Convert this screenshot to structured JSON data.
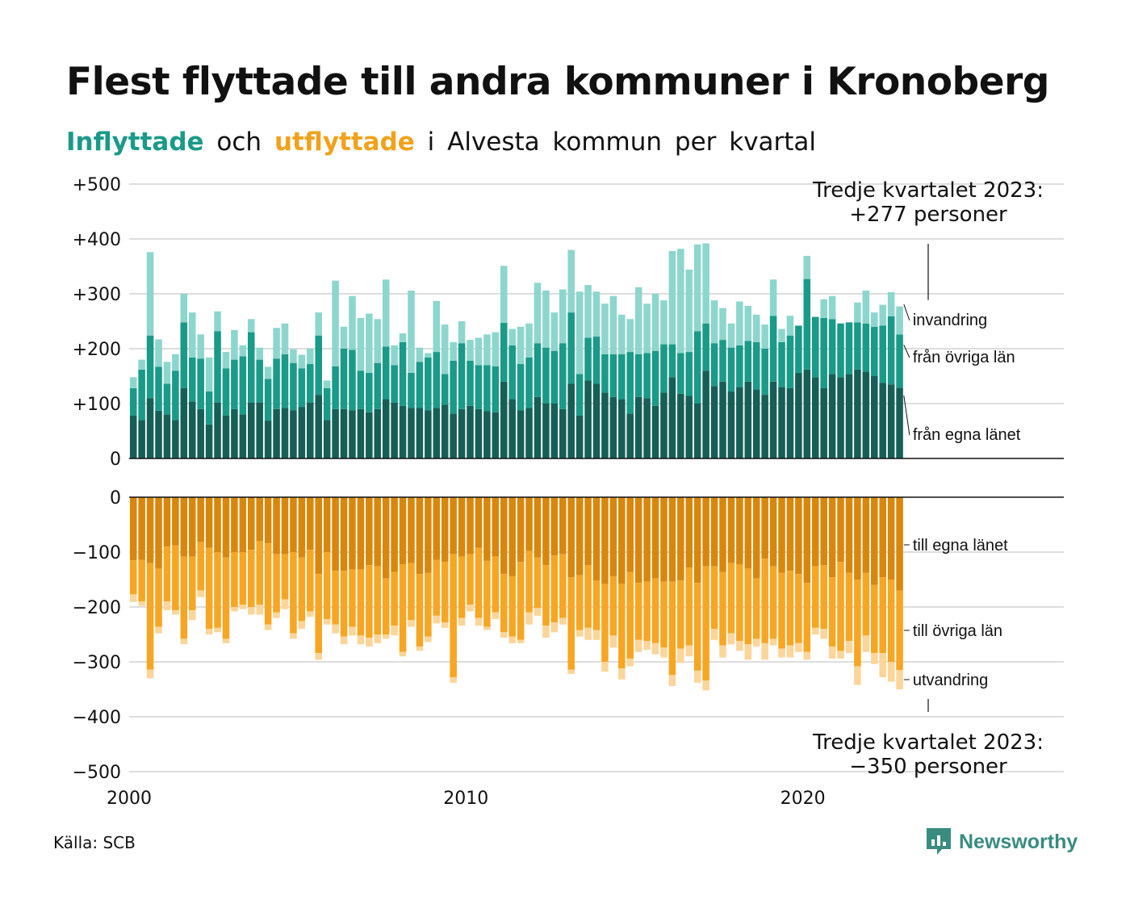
{
  "title": "Flest flyttade till andra kommuner i Kronoberg",
  "subtitle": {
    "in_word": "Inflyttade",
    "och": "och",
    "out_word": "utflyttade",
    "rest": "i Alvesta kommun per kvartal"
  },
  "source": "Källa: SCB",
  "brand": "Newsworthy",
  "colors": {
    "in_egna": "#165f57",
    "in_ovriga": "#1a9a88",
    "in_invandring": "#8dd6cd",
    "out_egna": "#d9870c",
    "out_ovriga": "#f7a623",
    "out_utvandring": "#fbd59a"
  },
  "chart_data": {
    "type": "bar",
    "stacked": true,
    "grid": true,
    "x_ticks": [
      "2000",
      "2010",
      "2020"
    ],
    "x_start_year": 2000,
    "x_end_year": 2027.75,
    "quarters_start": "2000 Q1",
    "upper_panel": {
      "ylim": [
        0,
        500
      ],
      "y_ticks": [
        "0",
        "+100",
        "+200",
        "+300",
        "+400",
        "+500"
      ],
      "annotation_lines": [
        "Tredje kvartalet 2023:",
        "+277 personer"
      ],
      "series": [
        {
          "name": "från egna länet",
          "values": [
            78,
            70,
            110,
            87,
            80,
            70,
            128,
            104,
            90,
            62,
            102,
            78,
            90,
            80,
            102,
            102,
            69,
            90,
            92,
            88,
            94,
            102,
            116,
            70,
            90,
            90,
            88,
            90,
            84,
            90,
            108,
            102,
            96,
            92,
            92,
            88,
            92,
            98,
            82,
            90,
            96,
            90,
            86,
            84,
            140,
            108,
            88,
            92,
            112,
            100,
            100,
            90,
            136,
            78,
            142,
            136,
            120,
            112,
            108,
            82,
            112,
            110,
            96,
            120,
            148,
            118,
            114,
            100,
            160,
            132,
            140,
            122,
            130,
            140,
            126,
            116,
            140,
            130,
            128,
            156,
            162,
            148,
            128,
            154,
            148,
            154,
            162,
            158,
            150,
            138,
            135,
            129
          ]
        },
        {
          "name": "från övriga län",
          "values": [
            50,
            92,
            114,
            80,
            56,
            90,
            120,
            80,
            92,
            60,
            130,
            86,
            90,
            106,
            128,
            78,
            76,
            92,
            98,
            86,
            70,
            70,
            108,
            58,
            78,
            110,
            110,
            70,
            72,
            84,
            96,
            68,
            116,
            64,
            84,
            96,
            102,
            56,
            96,
            120,
            82,
            80,
            84,
            84,
            107,
            98,
            84,
            92,
            98,
            102,
            96,
            120,
            130,
            76,
            78,
            86,
            70,
            78,
            82,
            112,
            78,
            82,
            100,
            88,
            60,
            74,
            80,
            132,
            86,
            78,
            76,
            80,
            76,
            74,
            86,
            84,
            120,
            82,
            96,
            86,
            165,
            110,
            128,
            100,
            98,
            94,
            86,
            88,
            90,
            104,
            124,
            97
          ]
        },
        {
          "name": "invandring",
          "values": [
            20,
            18,
            152,
            50,
            40,
            30,
            52,
            82,
            44,
            62,
            36,
            30,
            54,
            20,
            24,
            22,
            22,
            56,
            56,
            25,
            25,
            28,
            42,
            14,
            156,
            40,
            98,
            96,
            108,
            80,
            122,
            36,
            16,
            150,
            26,
            8,
            93,
            90,
            34,
            40,
            38,
            50,
            56,
            62,
            104,
            30,
            68,
            62,
            110,
            104,
            70,
            98,
            114,
            150,
            96,
            82,
            92,
            106,
            72,
            60,
            122,
            90,
            104,
            80,
            170,
            190,
            150,
            158,
            146,
            78,
            58,
            44,
            80,
            64,
            50,
            44,
            66,
            24,
            36,
            0,
            42,
            0,
            34,
            42,
            0,
            0,
            36,
            60,
            26,
            38,
            44,
            51
          ]
        }
      ]
    },
    "lower_panel": {
      "ylim": [
        -500,
        0
      ],
      "y_ticks": [
        "0",
        "−100",
        "−200",
        "−300",
        "−400",
        "−500"
      ],
      "annotation_lines": [
        "Tredje kvartalet 2023:",
        "−350 personer"
      ],
      "series": [
        {
          "name": "till egna länet",
          "values": [
            115,
            114,
            120,
            130,
            90,
            88,
            108,
            108,
            82,
            92,
            100,
            110,
            100,
            100,
            96,
            80,
            84,
            104,
            104,
            100,
            110,
            96,
            140,
            100,
            134,
            134,
            132,
            132,
            124,
            126,
            148,
            136,
            122,
            120,
            140,
            138,
            114,
            118,
            104,
            108,
            104,
            92,
            116,
            108,
            140,
            144,
            118,
            98,
            110,
            124,
            106,
            104,
            146,
            142,
            124,
            152,
            158,
            144,
            158,
            136,
            156,
            154,
            148,
            154,
            154,
            152,
            128,
            156,
            126,
            126,
            136,
            120,
            122,
            130,
            148,
            112,
            126,
            138,
            134,
            140,
            156,
            126,
            124,
            146,
            118,
            138,
            150,
            138,
            160,
            146,
            150,
            170
          ]
        },
        {
          "name": "till övriga län",
          "values": [
            62,
            76,
            194,
            106,
            100,
            118,
            150,
            98,
            88,
            148,
            138,
            148,
            100,
            96,
            104,
            116,
            148,
            106,
            82,
            148,
            116,
            112,
            144,
            122,
            98,
            120,
            104,
            120,
            132,
            124,
            102,
            98,
            160,
            104,
            132,
            116,
            102,
            110,
            224,
            112,
            92,
            128,
            120,
            102,
            106,
            110,
            142,
            112,
            92,
            110,
            122,
            116,
            168,
            100,
            114,
            90,
            142,
            108,
            154,
            158,
            104,
            108,
            118,
            120,
            170,
            124,
            142,
            160,
            208,
            114,
            134,
            128,
            140,
            138,
            110,
            154,
            132,
            138,
            136,
            126,
            126,
            112,
            116,
            126,
            162,
            124,
            158,
            114,
            124,
            138,
            150,
            145
          ]
        },
        {
          "name": "utvandring",
          "values": [
            14,
            8,
            16,
            12,
            16,
            8,
            10,
            18,
            12,
            10,
            8,
            8,
            8,
            8,
            14,
            18,
            10,
            10,
            18,
            10,
            14,
            10,
            12,
            10,
            16,
            14,
            16,
            16,
            16,
            16,
            8,
            18,
            8,
            12,
            8,
            10,
            14,
            10,
            10,
            14,
            12,
            14,
            6,
            12,
            10,
            12,
            6,
            22,
            14,
            22,
            18,
            12,
            8,
            12,
            22,
            18,
            18,
            22,
            20,
            14,
            22,
            16,
            20,
            18,
            20,
            26,
            20,
            22,
            18,
            20,
            22,
            20,
            18,
            28,
            14,
            30,
            12,
            16,
            22,
            16,
            14,
            12,
            18,
            22,
            14,
            22,
            34,
            30,
            20,
            44,
            36,
            35
          ]
        }
      ]
    }
  }
}
